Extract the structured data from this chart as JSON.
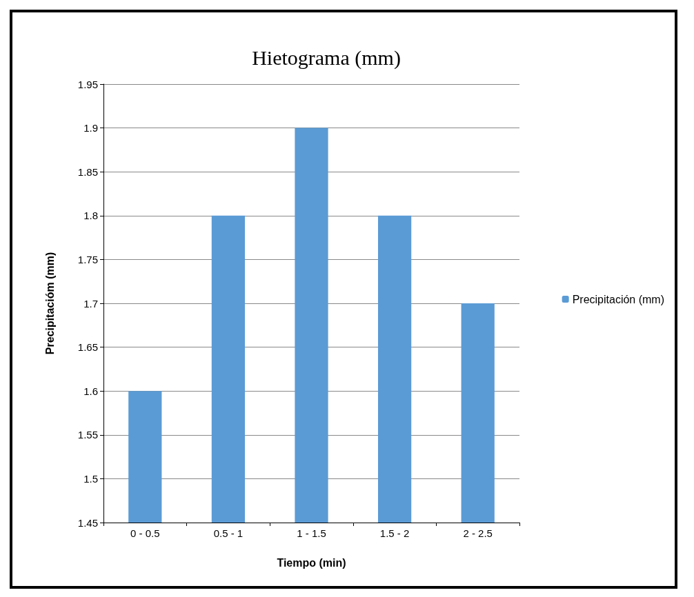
{
  "chart_data": {
    "type": "bar",
    "title": "Hietograma (mm)",
    "xlabel": "Tiempo (min)",
    "ylabel": "Precipitacióm (mm)",
    "categories": [
      "0 - 0.5",
      "0.5 - 1",
      "1 - 1.5",
      "1.5 - 2",
      "2 - 2.5"
    ],
    "series": [
      {
        "name": "Precipitación (mm)",
        "color": "#5b9bd5",
        "values": [
          1.6,
          1.8,
          1.9,
          1.8,
          1.7
        ]
      }
    ],
    "ylim": [
      1.45,
      1.95
    ],
    "yticks": [
      1.45,
      1.5,
      1.55,
      1.6,
      1.65,
      1.7,
      1.75,
      1.8,
      1.85,
      1.9,
      1.95
    ],
    "grid": "y",
    "legend": "right"
  }
}
